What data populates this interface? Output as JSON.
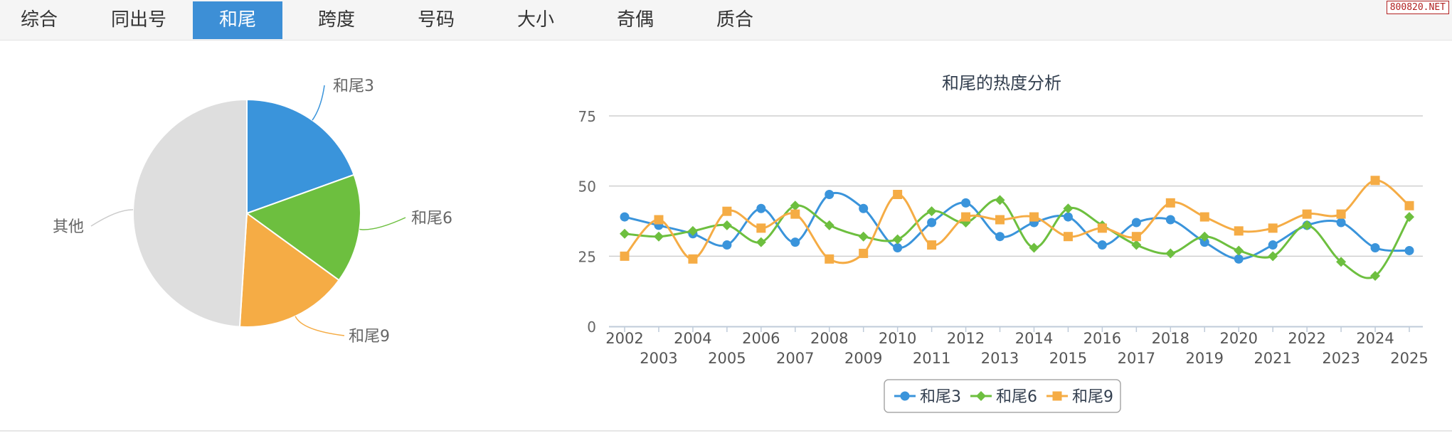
{
  "tabs": [
    {
      "label": "综合",
      "active": false
    },
    {
      "label": "同出号",
      "active": false
    },
    {
      "label": "和尾",
      "active": true
    },
    {
      "label": "跨度",
      "active": false
    },
    {
      "label": "号码",
      "active": false
    },
    {
      "label": "大小",
      "active": false
    },
    {
      "label": "奇偶",
      "active": false
    },
    {
      "label": "质合",
      "active": false
    }
  ],
  "watermark": "800820.NET",
  "chart_data": [
    {
      "type": "pie",
      "slices": [
        {
          "label": "和尾3",
          "value": 19.5,
          "color": "#3a94db"
        },
        {
          "label": "和尾6",
          "value": 15.5,
          "color": "#6dbf3f"
        },
        {
          "label": "和尾9",
          "value": 16,
          "color": "#f5ac45"
        },
        {
          "label": "其他",
          "value": 49,
          "color": "#dedede"
        }
      ]
    },
    {
      "type": "line",
      "title": "和尾的热度分析",
      "x": [
        "2002",
        "2003",
        "2004",
        "2005",
        "2006",
        "2007",
        "2008",
        "2009",
        "2010",
        "2011",
        "2012",
        "2013",
        "2014",
        "2015",
        "2016",
        "2017",
        "2018",
        "2019",
        "2020",
        "2021",
        "2022",
        "2023",
        "2024",
        "2025"
      ],
      "ylim": [
        0,
        75
      ],
      "yticks": [
        0,
        25,
        50,
        75
      ],
      "grid": true,
      "legend": "bottom",
      "series": [
        {
          "name": "和尾3",
          "color": "#3a94db",
          "marker": "circle",
          "values": [
            39,
            36,
            33,
            29,
            42,
            30,
            47,
            42,
            28,
            37,
            44,
            32,
            37,
            39,
            29,
            37,
            38,
            30,
            24,
            29,
            36,
            37,
            28,
            27
          ]
        },
        {
          "name": "和尾6",
          "color": "#6dbf3f",
          "marker": "diamond",
          "values": [
            33,
            32,
            34,
            36,
            30,
            43,
            36,
            32,
            31,
            41,
            37,
            45,
            28,
            42,
            36,
            29,
            26,
            32,
            27,
            25,
            36,
            23,
            18,
            39
          ]
        },
        {
          "name": "和尾9",
          "color": "#f5ac45",
          "marker": "square",
          "values": [
            25,
            38,
            24,
            41,
            35,
            40,
            24,
            26,
            47,
            29,
            39,
            38,
            39,
            32,
            35,
            32,
            44,
            39,
            34,
            35,
            40,
            40,
            52,
            43
          ]
        }
      ]
    }
  ]
}
